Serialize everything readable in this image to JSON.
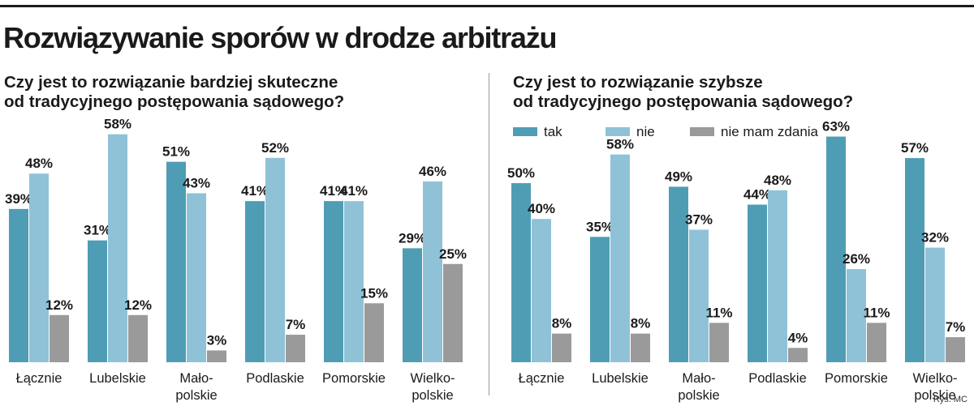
{
  "title": "Rozwiązywanie sporów w drodze arbitrażu",
  "credit": "Rys. MC",
  "colors": {
    "tak": "#4f9db5",
    "nie": "#8fc2d6",
    "nie_mam_zdania": "#9a9a9a"
  },
  "chart_data": [
    {
      "type": "bar",
      "question": [
        "Czy jest to rozwiązanie bardziej skuteczne",
        "od tradycyjnego postępowania sądowego?"
      ],
      "categories": [
        [
          "Łącznie"
        ],
        [
          "Lubelskie"
        ],
        [
          "Mało-",
          "polskie"
        ],
        [
          "Podlaskie"
        ],
        [
          "Pomorskie"
        ],
        [
          "Wielko-",
          "polskie"
        ]
      ],
      "series": [
        {
          "name": "tak",
          "values": [
            39,
            31,
            51,
            41,
            41,
            29
          ],
          "labels": [
            "39%",
            "31%",
            "51%",
            "41%",
            "41%",
            "29%"
          ]
        },
        {
          "name": "nie",
          "values": [
            48,
            58,
            43,
            52,
            41,
            46
          ],
          "labels": [
            "48%",
            "58%",
            "43%",
            "52%",
            "41%",
            "46%"
          ]
        },
        {
          "name": "nie mam zdania",
          "values": [
            12,
            12,
            3,
            7,
            15,
            25
          ],
          "labels": [
            "12%",
            "12%",
            "3%",
            "7%",
            "15%",
            "25%"
          ]
        }
      ],
      "ylim": [
        0,
        58
      ]
    },
    {
      "type": "bar",
      "question": [
        "Czy jest to rozwiązanie szybsze",
        "od tradycyjnego postępowania sądowego?"
      ],
      "legend": [
        "tak",
        "nie",
        "nie mam zdania"
      ],
      "categories": [
        [
          "Łącznie"
        ],
        [
          "Lubelskie"
        ],
        [
          "Mało-",
          "polskie"
        ],
        [
          "Podlaskie"
        ],
        [
          "Pomorskie"
        ],
        [
          "Wielko-",
          "polskie"
        ]
      ],
      "series": [
        {
          "name": "tak",
          "values": [
            50,
            35,
            49,
            44,
            63,
            57
          ],
          "labels": [
            "50%",
            "35%",
            "49%",
            "44%",
            "63%",
            "57%"
          ]
        },
        {
          "name": "nie",
          "values": [
            40,
            58,
            37,
            48,
            26,
            32
          ],
          "labels": [
            "40%",
            "58%",
            "37%",
            "48%",
            "26%",
            "32%"
          ]
        },
        {
          "name": "nie mam zdania",
          "values": [
            8,
            8,
            11,
            4,
            11,
            7
          ],
          "labels": [
            "8%",
            "8%",
            "11%",
            "4%",
            "11%",
            "7%"
          ]
        }
      ],
      "ylim": [
        0,
        63
      ]
    }
  ]
}
